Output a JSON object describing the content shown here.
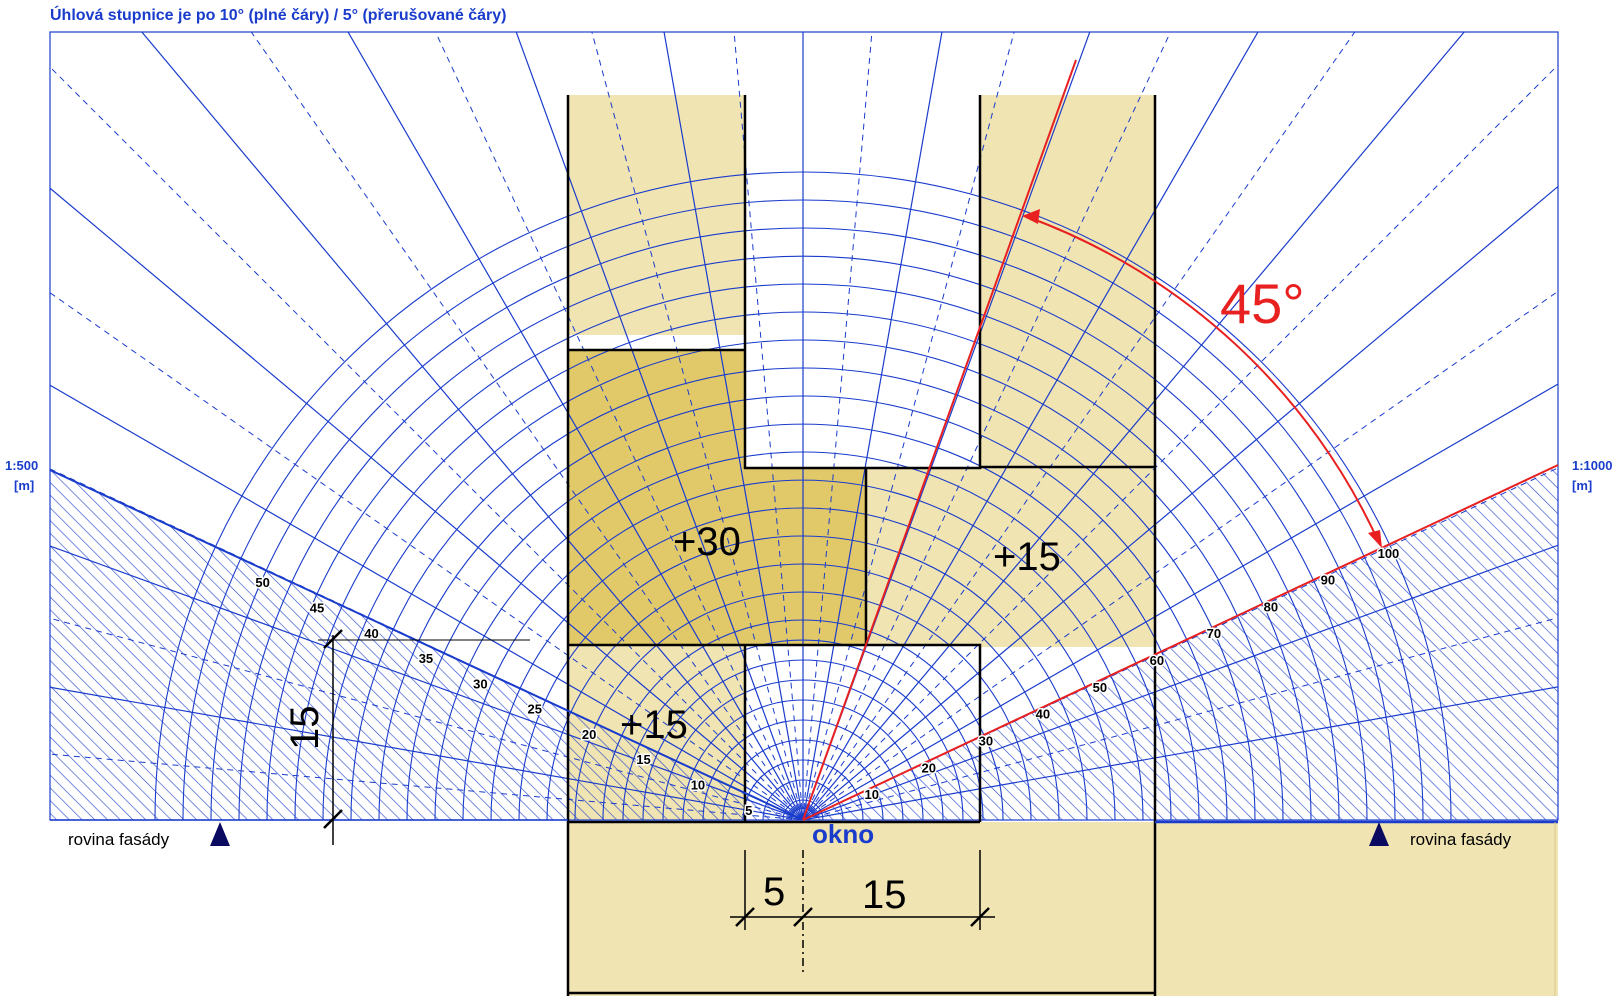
{
  "header": {
    "title": "Úhlová stupnice je po 10° (plné čáry) / 5° (přerušované čáry)"
  },
  "scales": {
    "left_scale": "1:500",
    "left_unit": "[m]",
    "right_scale": "1:1000",
    "right_unit": "[m]"
  },
  "facade": {
    "left_label": "rovina fasády",
    "right_label": "rovina fasády",
    "window_label": "okno"
  },
  "zones": {
    "upper_left": "+30",
    "right_mid": "+15",
    "lower_left": "+15"
  },
  "angle": {
    "label": "45°",
    "color": "#e82020"
  },
  "dimensions": {
    "height": "15",
    "left_width": "5",
    "right_width": "15"
  },
  "left_scale_ticks": [
    "5",
    "10",
    "15",
    "20",
    "25",
    "30",
    "35",
    "40",
    "45",
    "50"
  ],
  "right_scale_ticks": [
    "10",
    "20",
    "30",
    "40",
    "50",
    "60",
    "70",
    "80",
    "90",
    "100"
  ],
  "colors": {
    "grid": "#1a3ccc",
    "building_light": "#f0e4b2",
    "building_dark": "#e1c96a",
    "angle": "#e82020",
    "outline": "#000000"
  }
}
